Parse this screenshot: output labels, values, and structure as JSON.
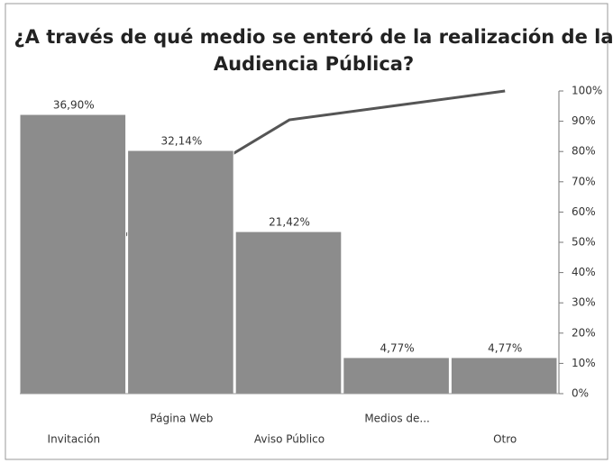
{
  "chart_data": {
    "type": "pareto",
    "title": [
      "¿A través de qué medio se enteró de la realización de la",
      "Audiencia Pública?"
    ],
    "categories": [
      "Invitación",
      "Página Web",
      "Aviso Público",
      "Medios de...",
      "Otro"
    ],
    "series": [
      {
        "color": "#8c8c8c",
        "values": [
          36.9,
          32.14,
          21.42,
          4.77,
          4.77
        ],
        "value_labels": [
          "36,90%",
          "32,14%",
          "21,42%",
          "4,77%",
          "4,77%"
        ]
      },
      {
        "color": "#555555",
        "axis": "y2",
        "values": [
          36.9,
          69.04,
          90.46,
          95.23,
          100
        ]
      }
    ],
    "ylim": [
      0,
      40
    ],
    "y2lim": [
      0,
      100
    ],
    "y2ticks": [
      {
        "value": 0,
        "label": "0%"
      },
      {
        "value": 10,
        "label": "10%"
      },
      {
        "value": 20,
        "label": "20%"
      },
      {
        "value": 30,
        "label": "30%"
      },
      {
        "value": 40,
        "label": "40%"
      },
      {
        "value": 50,
        "label": "50%"
      },
      {
        "value": 60,
        "label": "60%"
      },
      {
        "value": 70,
        "label": "70%"
      },
      {
        "value": 80,
        "label": "80%"
      },
      {
        "value": 90,
        "label": "90%"
      },
      {
        "value": 100,
        "label": "100%"
      }
    ]
  }
}
